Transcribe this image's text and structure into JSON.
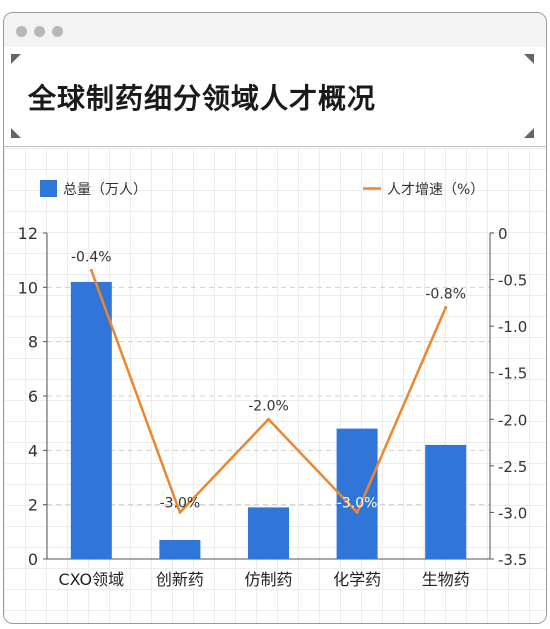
{
  "window": {
    "title": "全球制药细分领域人才概况"
  },
  "legend": {
    "bar_label": "总量（万人）",
    "line_label": "人才增速（%）"
  },
  "colors": {
    "bar": "#2F76D8",
    "line": "#F0852D",
    "grid": "#cfcfcf",
    "axis": "#555555"
  },
  "chart_data": {
    "type": "bar",
    "title": "全球制药细分领域人才概况",
    "categories": [
      "CXO领域",
      "创新药",
      "仿制药",
      "化学药",
      "生物药"
    ],
    "series": [
      {
        "name": "总量（万人）",
        "type": "bar",
        "axis": "left",
        "values": [
          10.2,
          0.7,
          1.9,
          4.8,
          4.2
        ]
      },
      {
        "name": "人才增速（%）",
        "type": "line",
        "axis": "right",
        "values": [
          -0.4,
          -3.0,
          -2.0,
          -3.0,
          -0.8
        ]
      }
    ],
    "data_labels": [
      "-0.4%",
      "-3.0%",
      "-2.0%",
      "-3.0%",
      "-0.8%"
    ],
    "y_left": {
      "min": 0,
      "max": 12,
      "ticks": [
        "0",
        "2",
        "4",
        "6",
        "8",
        "10",
        "12"
      ]
    },
    "y_right": {
      "min": -3.5,
      "max": 0,
      "ticks": [
        "0",
        "-0.5",
        "-1.0",
        "-1.5",
        "-2.0",
        "-2.5",
        "-3.0",
        "-3.5"
      ]
    },
    "legend_position": "top",
    "grid": "dashed-horizontal"
  }
}
